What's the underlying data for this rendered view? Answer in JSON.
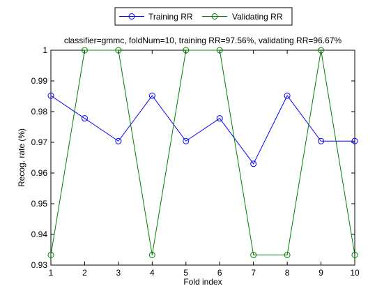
{
  "chart_data": {
    "type": "line",
    "title": "classifier=gmmc, foldNum=10, training RR=97.56%, validating RR=96.67%",
    "xlabel": "Fold index",
    "ylabel": "Recog. rate (%)",
    "xlim": [
      1,
      10
    ],
    "ylim": [
      0.93,
      1.0
    ],
    "xticks": [
      "1",
      "2",
      "3",
      "4",
      "5",
      "6",
      "7",
      "8",
      "9",
      "10"
    ],
    "yticks": [
      "0.93",
      "0.94",
      "0.95",
      "0.96",
      "0.97",
      "0.98",
      "0.99",
      "1"
    ],
    "grid": false,
    "legend_position": "top-center",
    "x": [
      1,
      2,
      3,
      4,
      5,
      6,
      7,
      8,
      9,
      10
    ],
    "series": [
      {
        "name": "Training RR",
        "color": "#0000ff",
        "marker": "circle",
        "values": [
          0.9852,
          0.9778,
          0.9704,
          0.9852,
          0.9704,
          0.9778,
          0.963,
          0.9852,
          0.9704,
          0.9704
        ]
      },
      {
        "name": "Validating RR",
        "color": "#008000",
        "marker": "circle",
        "values": [
          0.9333,
          1.0,
          1.0,
          0.9333,
          1.0,
          1.0,
          0.9333,
          0.9333,
          1.0,
          0.9333
        ]
      }
    ]
  }
}
